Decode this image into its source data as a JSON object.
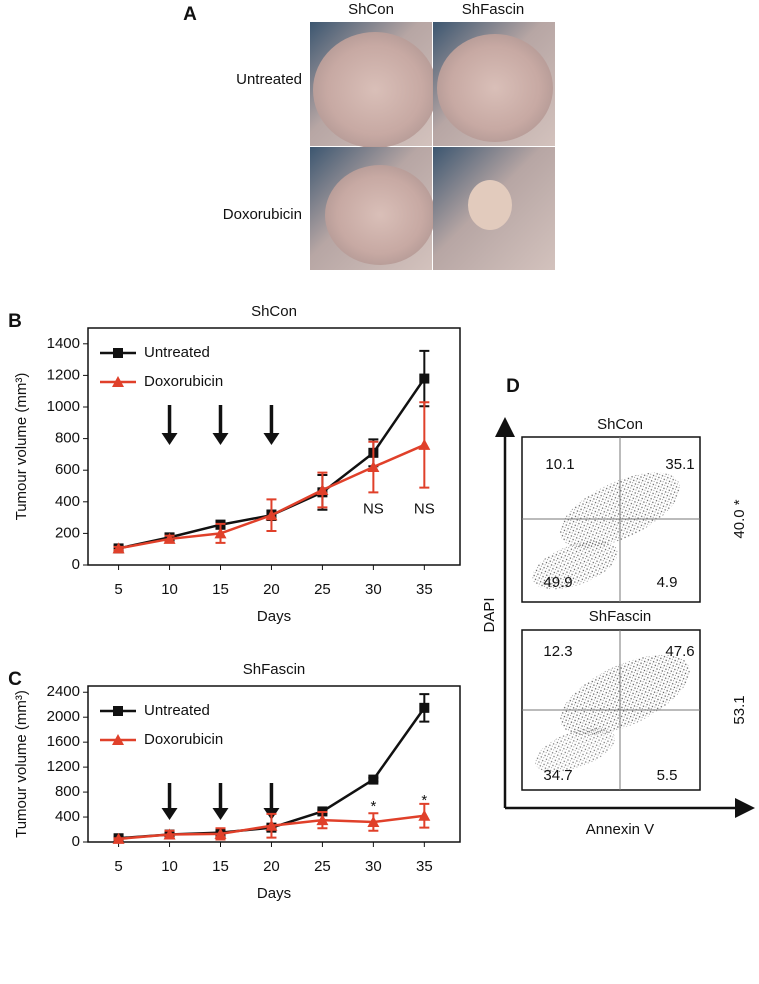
{
  "panel_a": {
    "label": "A",
    "columns": [
      "ShCon",
      "ShFascin"
    ],
    "rows": [
      "Untreated",
      "Doxorubicin"
    ]
  },
  "chart_data": [
    {
      "type": "line",
      "panel_label": "B",
      "title": "ShCon",
      "x_label": "Days",
      "y_label": "Tumour volume (mm³)",
      "x": [
        5,
        10,
        15,
        20,
        25,
        30,
        35
      ],
      "xlim": [
        2,
        38.5
      ],
      "xticks": [
        5,
        10,
        15,
        20,
        25,
        30,
        35
      ],
      "ylim": [
        0,
        1500
      ],
      "yticks": [
        0,
        200,
        400,
        600,
        800,
        1000,
        1200,
        1400
      ],
      "legend": "upper left",
      "arrow_x": [
        10,
        15,
        20
      ],
      "annotations": [
        {
          "text": "NS",
          "x": 30,
          "y": 350
        },
        {
          "text": "NS",
          "x": 35,
          "y": 350
        }
      ],
      "series": [
        {
          "name": "Untreated",
          "color": "#111111",
          "marker": "square",
          "values": [
            105,
            175,
            255,
            315,
            460,
            710,
            1180
          ],
          "errors": [
            15,
            20,
            25,
            30,
            110,
            85,
            175
          ]
        },
        {
          "name": "Doxorubicin",
          "color": "#e0402a",
          "marker": "triangle",
          "values": [
            105,
            165,
            200,
            315,
            475,
            620,
            760
          ],
          "errors": [
            10,
            20,
            60,
            100,
            110,
            160,
            270
          ]
        }
      ]
    },
    {
      "type": "line",
      "panel_label": "C",
      "title": "ShFascin",
      "x_label": "Days",
      "y_label": "Tumour volume (mm³)",
      "x": [
        5,
        10,
        15,
        20,
        25,
        30,
        35
      ],
      "xlim": [
        2,
        38.5
      ],
      "xticks": [
        5,
        10,
        15,
        20,
        25,
        30,
        35
      ],
      "ylim": [
        0,
        2500
      ],
      "yticks": [
        0,
        400,
        800,
        1200,
        1600,
        2000,
        2400
      ],
      "legend": "upper left",
      "arrow_x": [
        10,
        15,
        20
      ],
      "annotations": [
        {
          "text": "*",
          "x": 30,
          "y": 560
        },
        {
          "text": "*",
          "x": 35,
          "y": 660
        }
      ],
      "series": [
        {
          "name": "Untreated",
          "color": "#111111",
          "marker": "square",
          "values": [
            60,
            120,
            150,
            230,
            490,
            1000,
            2150
          ],
          "errors": [
            10,
            20,
            30,
            40,
            30,
            30,
            220
          ]
        },
        {
          "name": "Doxorubicin",
          "color": "#e0402a",
          "marker": "triangle",
          "values": [
            50,
            120,
            130,
            260,
            350,
            320,
            420
          ],
          "errors": [
            10,
            60,
            90,
            190,
            130,
            140,
            190
          ]
        }
      ]
    }
  ],
  "panel_d": {
    "label": "D",
    "y_axis": "DAPI",
    "x_axis": "Annexin V",
    "plots": [
      {
        "title": "ShCon",
        "upper_left": "10.1",
        "upper_right": "35.1",
        "lower_left": "49.9",
        "lower_right": "4.9",
        "total": "40.0 *"
      },
      {
        "title": "ShFascin",
        "upper_left": "12.3",
        "upper_right": "47.6",
        "lower_left": "34.7",
        "lower_right": "5.5",
        "total": "53.1"
      }
    ]
  }
}
